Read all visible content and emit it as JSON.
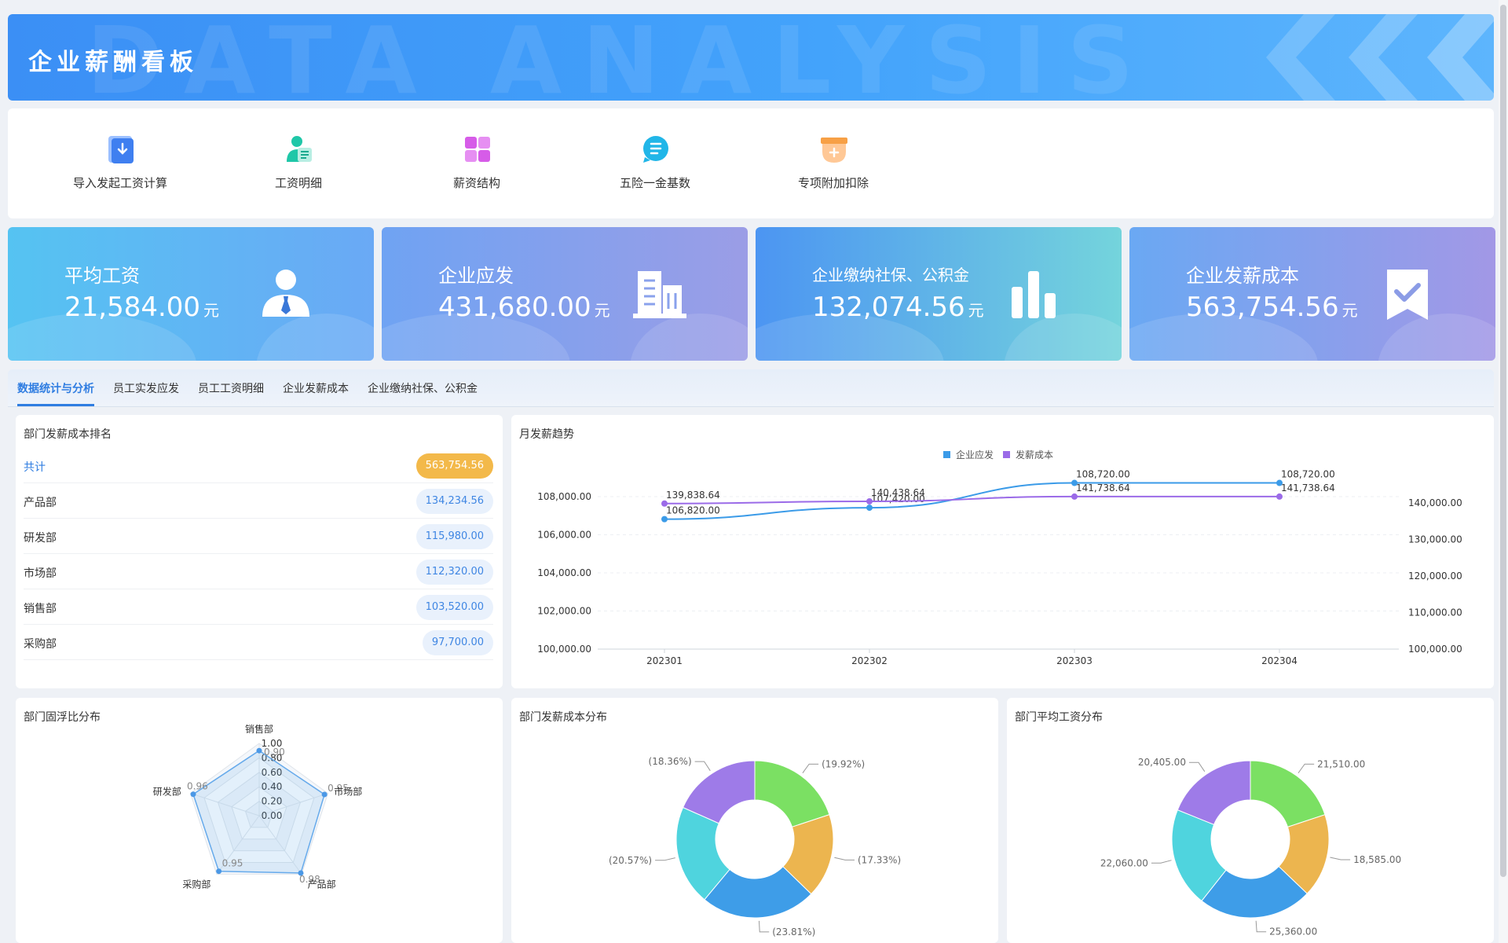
{
  "header": {
    "title": "企业薪酬看板",
    "watermark": "DATA ANALYSIS"
  },
  "shortcuts": [
    {
      "label": "导入发起工资计算",
      "icon": "import-icon",
      "color": "#3f7ff0"
    },
    {
      "label": "工资明细",
      "icon": "employee-detail-icon",
      "color": "#1fc7a8"
    },
    {
      "label": "薪资结构",
      "icon": "grid-icon",
      "color": "#d65ce8"
    },
    {
      "label": "五险一金基数",
      "icon": "list-bubble-icon",
      "color": "#21b6e8"
    },
    {
      "label": "专项附加扣除",
      "icon": "deduction-box-icon",
      "color": "#f7a046"
    }
  ],
  "stats": [
    {
      "title": "平均工资",
      "value": "21,584.00",
      "unit": "元",
      "icon": "person-icon"
    },
    {
      "title": "企业应发",
      "value": "431,680.00",
      "unit": "元",
      "icon": "building-icon"
    },
    {
      "title": "企业缴纳社保、公积金",
      "value": "132,074.56",
      "unit": "元",
      "icon": "bar-chart-icon"
    },
    {
      "title": "企业发薪成本",
      "value": "563,754.56",
      "unit": "元",
      "icon": "check-bookmark-icon"
    }
  ],
  "tabs": [
    {
      "label": "数据统计与分析",
      "active": true
    },
    {
      "label": "员工实发应发",
      "active": false
    },
    {
      "label": "员工工资明细",
      "active": false
    },
    {
      "label": "企业发薪成本",
      "active": false
    },
    {
      "label": "企业缴纳社保、公积金",
      "active": false
    }
  ],
  "ranking": {
    "title": "部门发薪成本排名",
    "rows": [
      {
        "name": "共计",
        "value": "563,754.56",
        "total": true
      },
      {
        "name": "产品部",
        "value": "134,234.56"
      },
      {
        "name": "研发部",
        "value": "115,980.00"
      },
      {
        "name": "市场部",
        "value": "112,320.00"
      },
      {
        "name": "销售部",
        "value": "103,520.00"
      },
      {
        "name": "采购部",
        "value": "97,700.00"
      }
    ]
  },
  "colors": {
    "series_a": "#3b9be8",
    "series_b": "#9b6be8",
    "accent": "#2f7de1"
  },
  "chart_data": [
    {
      "type": "line",
      "title": "月发薪趋势",
      "categories": [
        "202301",
        "202302",
        "202303",
        "202304"
      ],
      "series": [
        {
          "name": "企业应发",
          "values": [
            106820.0,
            107420.0,
            108720.0,
            108720.0
          ],
          "labels": [
            "106,820.00",
            "107,420.00",
            "108,720.00",
            "108,720.00"
          ],
          "axis": "left"
        },
        {
          "name": "发薪成本",
          "values": [
            139838.64,
            140438.64,
            141738.64,
            141738.64
          ],
          "labels": [
            "139,838.64",
            "140,438.64",
            "141,738.64",
            "141,738.64"
          ],
          "axis": "right"
        }
      ],
      "ylim_left": [
        100000,
        108000
      ],
      "yticks_left": [
        "100,000.00",
        "102,000.00",
        "104,000.00",
        "106,000.00",
        "108,000.00"
      ],
      "ylim_right": [
        100000,
        140000
      ],
      "yticks_right": [
        "100,000.00",
        "110,000.00",
        "120,000.00",
        "130,000.00",
        "140,000.00"
      ],
      "legend": "top-center",
      "grid": true
    },
    {
      "type": "radar",
      "title": "部门固浮比分布",
      "indicators": [
        "销售部",
        "市场部",
        "产品部",
        "采购部",
        "研发部"
      ],
      "values": [
        0.9,
        0.95,
        0.98,
        0.95,
        0.96
      ],
      "value_labels": [
        "0.90",
        "0.95",
        "0.98",
        "0.95",
        "0.96"
      ],
      "rlim": [
        0,
        1.0
      ],
      "ticks": [
        "0.00",
        "0.20",
        "0.40",
        "0.60",
        "0.80",
        "1.00"
      ]
    },
    {
      "type": "pie",
      "title": "部门发薪成本分布",
      "slices": [
        {
          "label": "(19.92%)",
          "value": 19.92,
          "color": "#7be063"
        },
        {
          "label": "(17.33%)",
          "value": 17.33,
          "color": "#ecb54f"
        },
        {
          "label": "(23.81%)",
          "value": 23.81,
          "color": "#3e9de8"
        },
        {
          "label": "(20.57%)",
          "value": 20.57,
          "color": "#4fd4de"
        },
        {
          "label": "(18.36%)",
          "value": 18.36,
          "color": "#9e7be8"
        }
      ]
    },
    {
      "type": "pie",
      "title": "部门平均工资分布",
      "slices": [
        {
          "label": "21,510.00",
          "value": 21510,
          "color": "#7be063"
        },
        {
          "label": "18,585.00",
          "value": 18585,
          "color": "#ecb54f"
        },
        {
          "label": "25,360.00",
          "value": 25360,
          "color": "#3e9de8"
        },
        {
          "label": "22,060.00",
          "value": 22060,
          "color": "#4fd4de"
        },
        {
          "label": "20,405.00",
          "value": 20405,
          "color": "#9e7be8"
        }
      ]
    }
  ]
}
